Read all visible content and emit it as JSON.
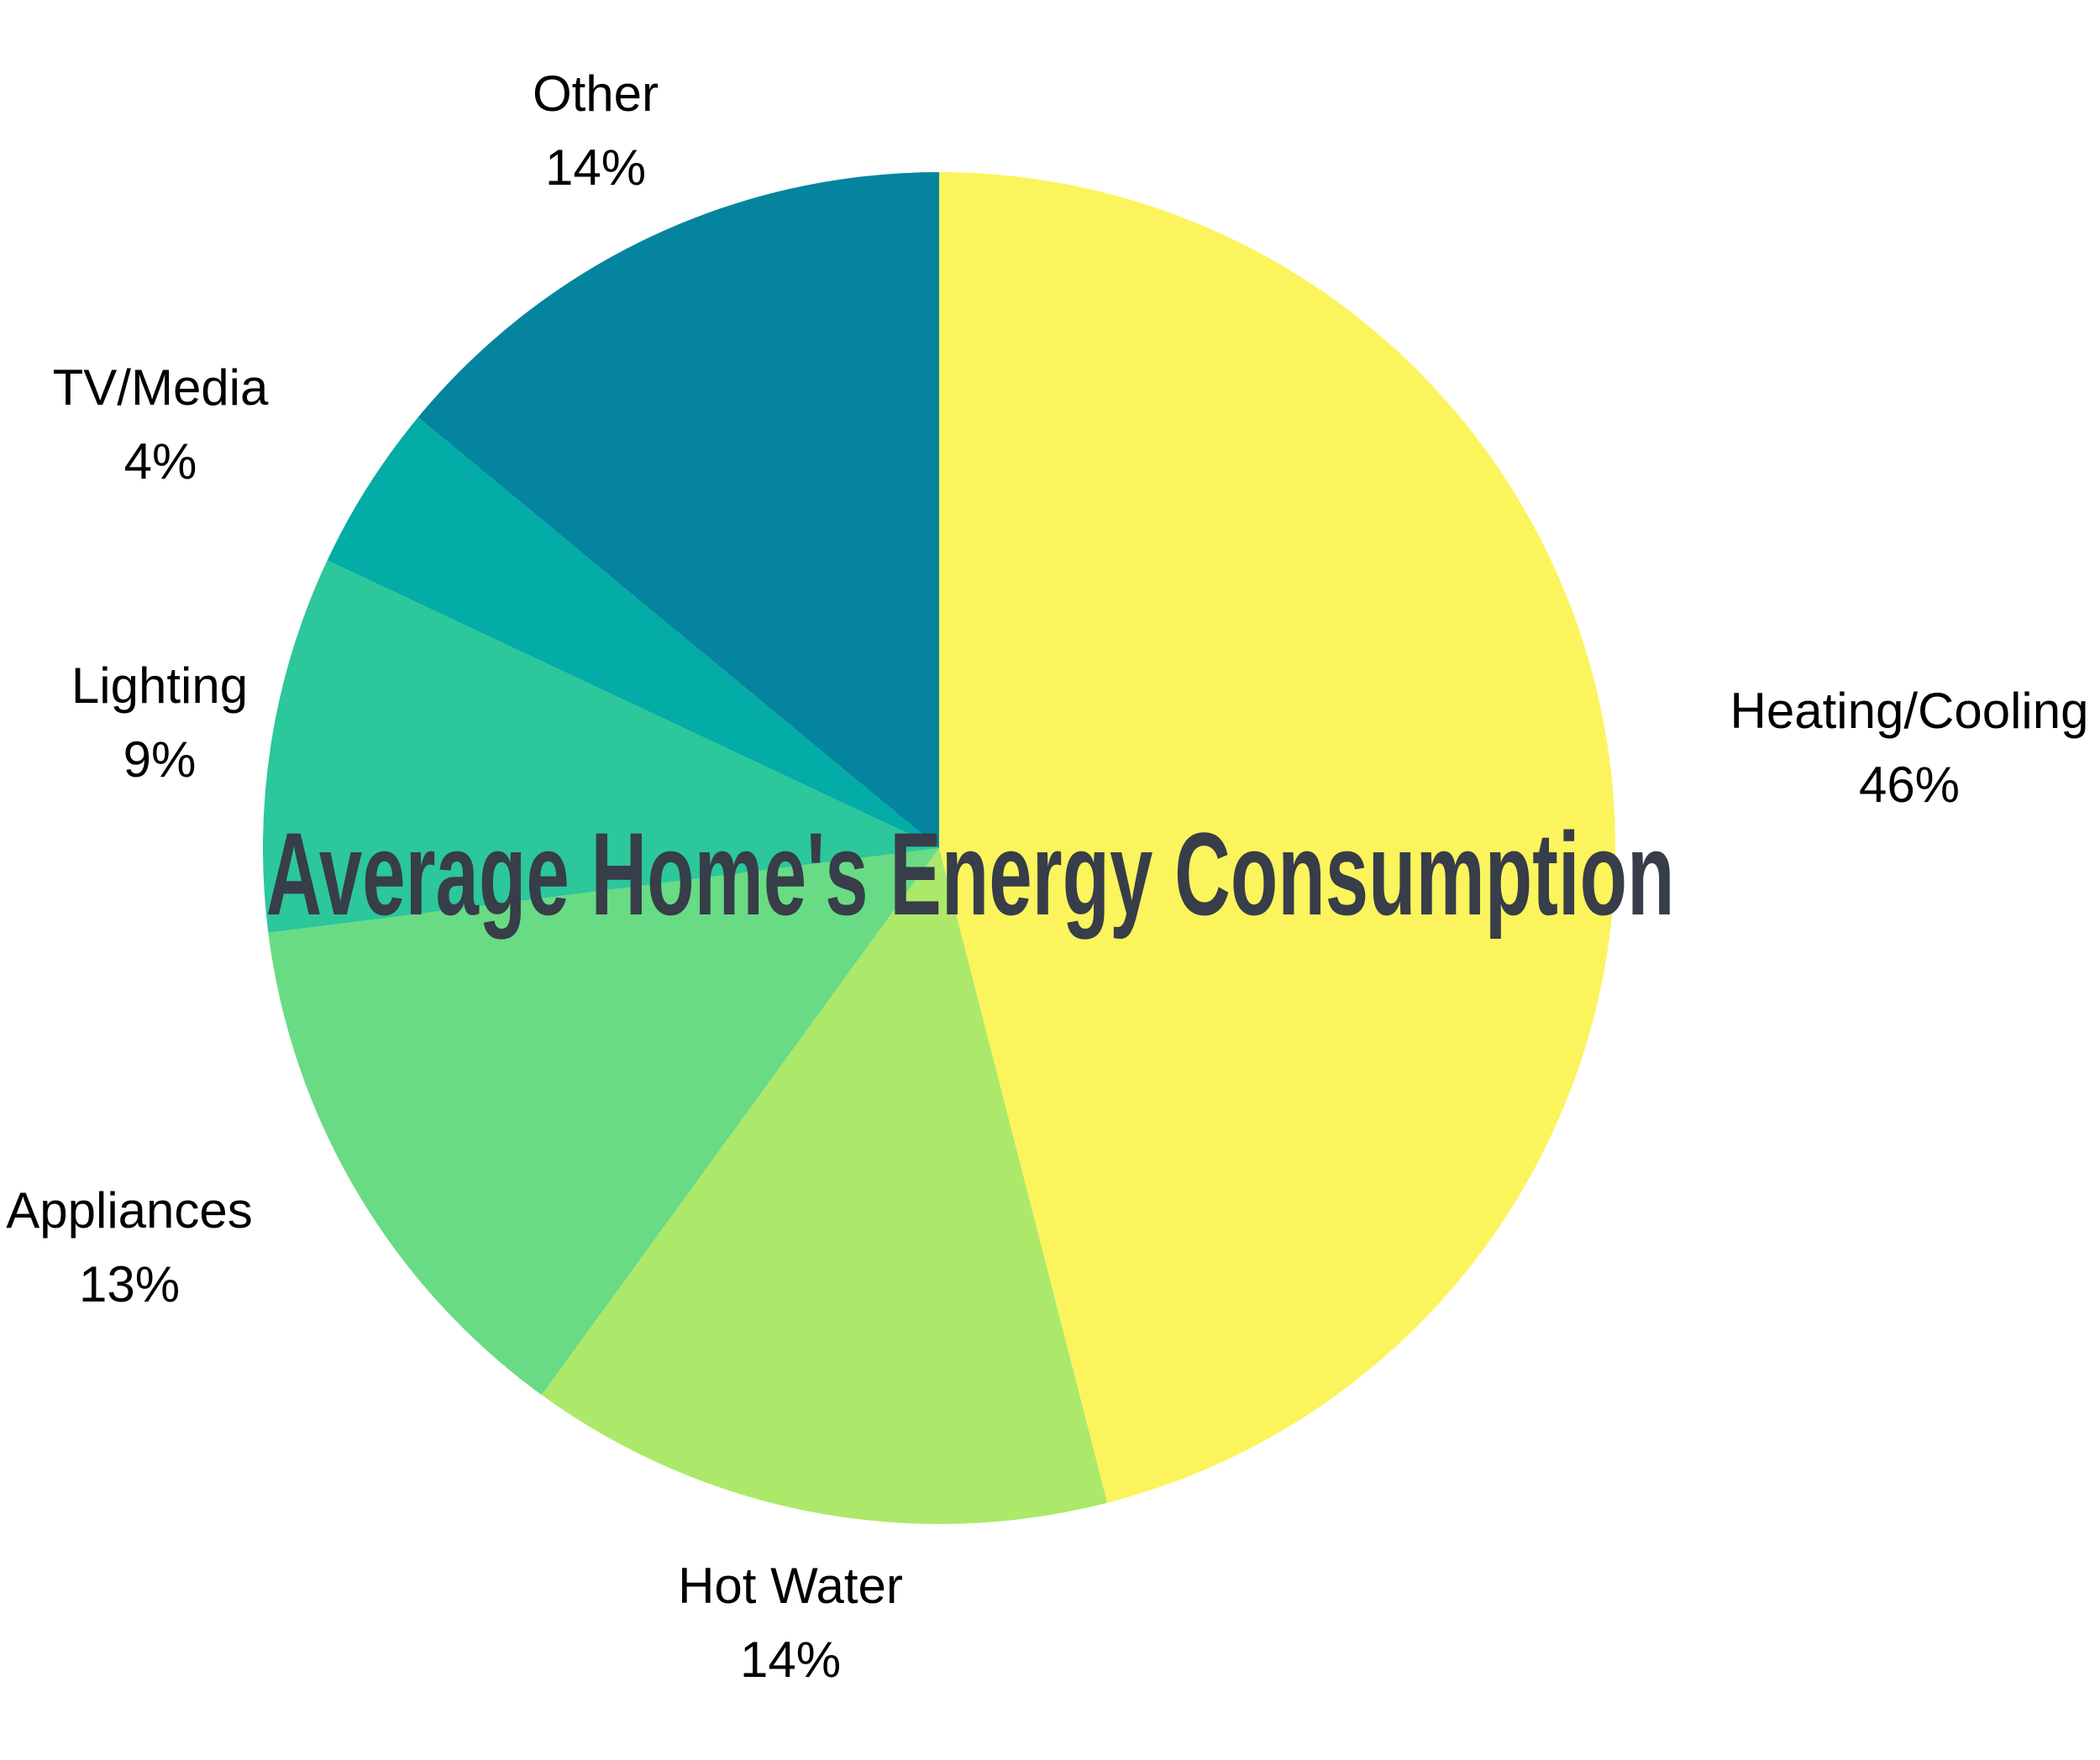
{
  "chart_data": {
    "type": "pie",
    "title": "Average Home's Energy Consumption",
    "title_lines": [
      "Average Home's Energy",
      "Consumption"
    ],
    "title_color": "#373D49",
    "label_color": "#000000",
    "background": "#FFFFFF",
    "start_angle_deg": 0,
    "direction": "clockwise",
    "legend": "none",
    "slices": [
      {
        "label": "Heating/Cooling",
        "value": 46,
        "pct_label": "46%",
        "color": "#FCF45C"
      },
      {
        "label": "Hot Water",
        "value": 14,
        "pct_label": "14%",
        "color": "#ACE96A"
      },
      {
        "label": "Appliances",
        "value": 13,
        "pct_label": "13%",
        "color": "#69DB84"
      },
      {
        "label": "Lighting",
        "value": 9,
        "pct_label": "9%",
        "color": "#2CC79A"
      },
      {
        "label": "TV/Media",
        "value": 4,
        "pct_label": "4%",
        "color": "#03ACA6"
      },
      {
        "label": "Other",
        "value": 14,
        "pct_label": "14%",
        "color": "#04849E"
      }
    ]
  }
}
